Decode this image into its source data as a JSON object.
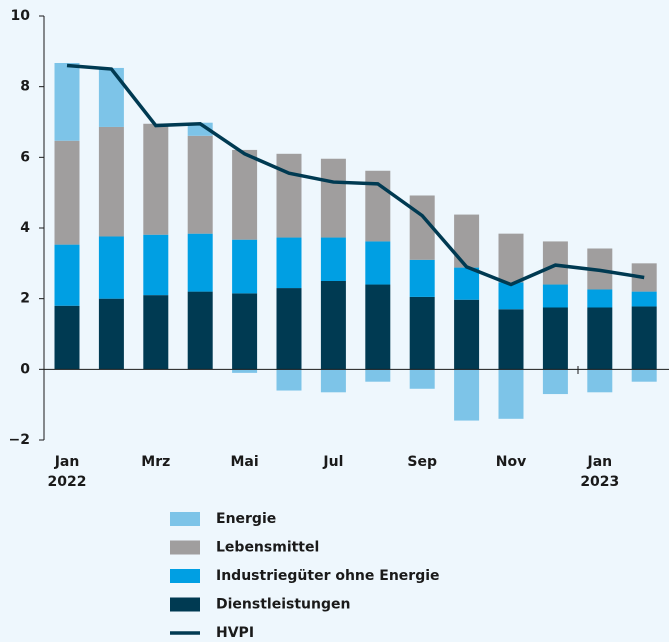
{
  "chart_data": {
    "type": "stacked-bar-line",
    "categories": [
      "Jan\n2022",
      null,
      "Mrz",
      null,
      "Mai",
      null,
      "Jul",
      null,
      "Sep",
      null,
      "Nov",
      null,
      "Jan\n2023",
      null
    ],
    "series": [
      {
        "name": "Dienstleistungen",
        "color": "#003a52",
        "kind": "bar",
        "values": [
          1.8,
          2.0,
          2.1,
          2.2,
          2.15,
          2.3,
          2.5,
          2.4,
          2.05,
          1.97,
          1.7,
          1.75,
          1.75,
          1.78
        ]
      },
      {
        "name": "Industriegüter ohne Energie",
        "color": "#009fe3",
        "kind": "bar",
        "values": [
          1.73,
          1.76,
          1.71,
          1.64,
          1.52,
          1.43,
          1.23,
          1.22,
          1.05,
          0.91,
          0.76,
          0.65,
          0.51,
          0.42
        ]
      },
      {
        "name": "Lebensmittel",
        "color": "#a09e9e",
        "kind": "bar",
        "values": [
          2.94,
          3.1,
          3.14,
          2.77,
          2.54,
          2.37,
          2.23,
          2.0,
          1.82,
          1.5,
          1.38,
          1.22,
          1.16,
          0.8
        ]
      },
      {
        "name": "Energie",
        "color": "#7dc4e8",
        "kind": "bar",
        "values": [
          2.2,
          1.67,
          0,
          0.37,
          -0.1,
          -0.6,
          -0.65,
          -0.35,
          -0.55,
          -1.45,
          -1.4,
          -0.7,
          -0.65,
          -0.35
        ]
      },
      {
        "name": "HVPI",
        "color": "#003a52",
        "kind": "line",
        "values": [
          8.6,
          8.5,
          6.9,
          6.95,
          6.1,
          5.55,
          5.3,
          5.25,
          4.35,
          2.9,
          2.4,
          2.95,
          2.8,
          2.6
        ]
      }
    ],
    "legend_order": [
      3,
      2,
      1,
      0,
      4
    ],
    "ylim": [
      -2,
      10
    ],
    "yticks": [
      {
        "value": -2,
        "label": "−2"
      },
      0,
      2,
      4,
      6,
      8,
      10
    ]
  }
}
